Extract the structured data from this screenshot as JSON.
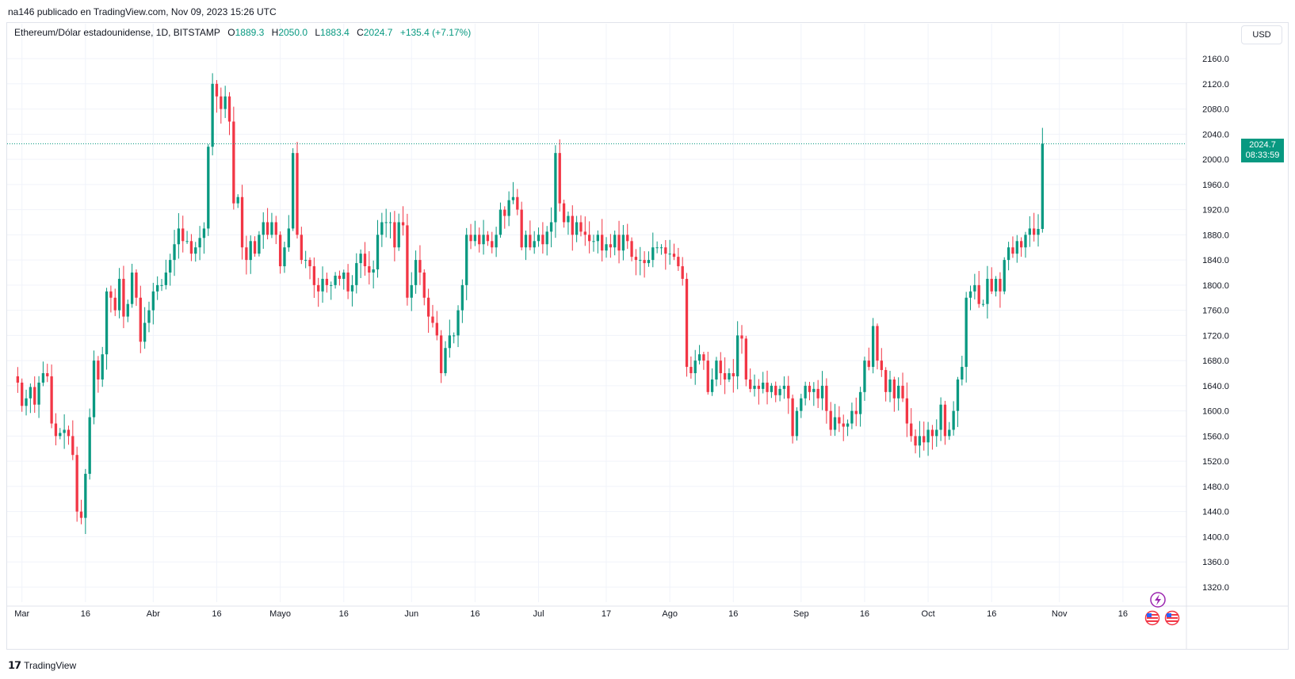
{
  "header": {
    "published": "na146 publicado en TradingView.com, Nov 09, 2023 15:26 UTC"
  },
  "legend": {
    "symbol": "Ethereum/Dólar estadounidense, 1D, BITSTAMP",
    "open_label": "O",
    "open": "1889.3",
    "high_label": "H",
    "high": "2050.0",
    "low_label": "L",
    "low": "1883.4",
    "close_label": "C",
    "close": "2024.7",
    "change": "+135.4 (+7.17%)"
  },
  "currency_button": "USD",
  "price_tag": {
    "price": "2024.7",
    "countdown": "08:33:59"
  },
  "footer": {
    "brand": "TradingView"
  },
  "colors": {
    "up": "#089981",
    "down": "#f23645",
    "grid": "#f0f3fa",
    "last_line": "#089981"
  },
  "chart_data": {
    "type": "candlestick",
    "title": "Ethereum/Dólar estadounidense, 1D, BITSTAMP",
    "yticks": [
      1320,
      1360,
      1400,
      1440,
      1480,
      1520,
      1560,
      1600,
      1640,
      1680,
      1720,
      1760,
      1800,
      1840,
      1880,
      1920,
      1960,
      2000,
      2040,
      2080,
      2120,
      2160
    ],
    "ylim": [
      1296,
      2184
    ],
    "xlabels": [
      {
        "label": "Mar",
        "day": 1
      },
      {
        "label": "16",
        "day": 16
      },
      {
        "label": "Abr",
        "day": 32
      },
      {
        "label": "16",
        "day": 47
      },
      {
        "label": "Mayo",
        "day": 62
      },
      {
        "label": "16",
        "day": 77
      },
      {
        "label": "Jun",
        "day": 93
      },
      {
        "label": "16",
        "day": 108
      },
      {
        "label": "Jul",
        "day": 123
      },
      {
        "label": "17",
        "day": 139
      },
      {
        "label": "Ago",
        "day": 154
      },
      {
        "label": "16",
        "day": 169
      },
      {
        "label": "Sep",
        "day": 185
      },
      {
        "label": "16",
        "day": 200
      },
      {
        "label": "Oct",
        "day": 215
      },
      {
        "label": "16",
        "day": 230
      },
      {
        "label": "Nov",
        "day": 246
      },
      {
        "label": "16",
        "day": 261
      }
    ],
    "xlim": [
      -2.5,
      276
    ],
    "last_price": 2024.7,
    "grid": true,
    "closes": [
      1645,
      1608,
      1620,
      1638,
      1610,
      1645,
      1660,
      1655,
      1580,
      1560,
      1565,
      1570,
      1560,
      1530,
      1440,
      1430,
      1500,
      1590,
      1680,
      1650,
      1690,
      1790,
      1780,
      1760,
      1810,
      1750,
      1770,
      1820,
      1780,
      1710,
      1740,
      1760,
      1790,
      1800,
      1800,
      1820,
      1840,
      1865,
      1890,
      1870,
      1870,
      1850,
      1860,
      1875,
      1890,
      2020,
      2120,
      2100,
      2080,
      2100,
      2060,
      1930,
      1940,
      1860,
      1840,
      1870,
      1850,
      1880,
      1900,
      1880,
      1900,
      1880,
      1830,
      1860,
      1890,
      2010,
      1880,
      1840,
      1840,
      1830,
      1800,
      1790,
      1810,
      1800,
      1800,
      1815,
      1810,
      1820,
      1790,
      1800,
      1835,
      1850,
      1830,
      1820,
      1825,
      1880,
      1900,
      1900,
      1900,
      1860,
      1900,
      1895,
      1780,
      1800,
      1840,
      1820,
      1780,
      1750,
      1740,
      1720,
      1660,
      1700,
      1720,
      1720,
      1760,
      1800,
      1880,
      1870,
      1880,
      1865,
      1880,
      1870,
      1860,
      1880,
      1920,
      1910,
      1935,
      1940,
      1920,
      1860,
      1880,
      1860,
      1870,
      1880,
      1865,
      1885,
      1900,
      2010,
      1930,
      1900,
      1910,
      1880,
      1900,
      1885,
      1880,
      1870,
      1870,
      1880,
      1855,
      1865,
      1860,
      1880,
      1855,
      1880,
      1870,
      1845,
      1840,
      1840,
      1835,
      1840,
      1860,
      1860,
      1860,
      1850,
      1850,
      1845,
      1830,
      1810,
      1670,
      1660,
      1680,
      1690,
      1680,
      1630,
      1650,
      1680,
      1660,
      1650,
      1660,
      1655,
      1720,
      1715,
      1650,
      1635,
      1640,
      1635,
      1645,
      1630,
      1640,
      1625,
      1635,
      1640,
      1620,
      1560,
      1600,
      1620,
      1640,
      1630,
      1635,
      1620,
      1640,
      1600,
      1570,
      1590,
      1580,
      1575,
      1580,
      1600,
      1595,
      1630,
      1680,
      1670,
      1735,
      1680,
      1665,
      1630,
      1650,
      1620,
      1640,
      1620,
      1580,
      1560,
      1545,
      1560,
      1550,
      1570,
      1560,
      1570,
      1610,
      1560,
      1570,
      1600,
      1650,
      1670,
      1780,
      1790,
      1800,
      1770,
      1770,
      1810,
      1790,
      1810,
      1790,
      1840,
      1860,
      1850,
      1870,
      1860,
      1880,
      1890,
      1880,
      1889.3,
      2024.7
    ]
  }
}
